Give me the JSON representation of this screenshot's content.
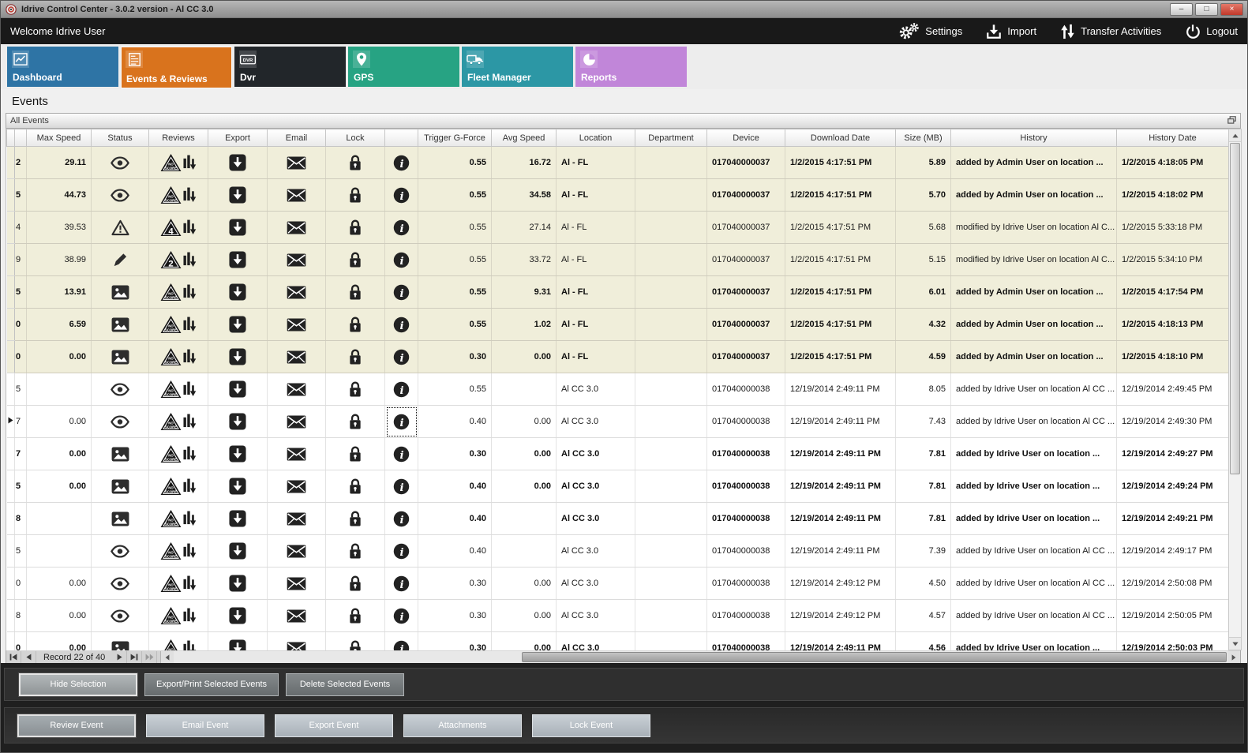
{
  "window": {
    "title": "Idrive Control Center - 3.0.2 version - Al CC 3.0",
    "controls": [
      {
        "name": "minimize",
        "glyph": "–"
      },
      {
        "name": "maximize",
        "glyph": "□"
      },
      {
        "name": "close",
        "glyph": "×"
      }
    ]
  },
  "header": {
    "welcome": "Welcome Idrive User",
    "actions": [
      {
        "label": "Settings",
        "icon": "gears-icon"
      },
      {
        "label": "Import",
        "icon": "import-icon"
      },
      {
        "label": "Transfer Activities",
        "icon": "transfer-icon"
      },
      {
        "label": "Logout",
        "icon": "power-icon"
      }
    ]
  },
  "tabs": [
    {
      "label": "Dashboard",
      "icon": "line-chart-icon",
      "color": "#2e74a5",
      "active": false
    },
    {
      "label": "Events & Reviews",
      "icon": "checklist-icon",
      "color": "#d9731d",
      "active": true
    },
    {
      "label": "Dvr",
      "icon": "dvr-icon",
      "color": "#22262a",
      "active": false
    },
    {
      "label": "GPS",
      "icon": "map-pin-icon",
      "color": "#27a383",
      "active": false
    },
    {
      "label": "Fleet Manager",
      "icon": "truck-icon",
      "color": "#2c97a5",
      "active": false
    },
    {
      "label": "Reports",
      "icon": "pie-chart-icon",
      "color": "#c186d9",
      "active": false
    }
  ],
  "page": {
    "title": "Events",
    "panel_title": "All Events"
  },
  "grid": {
    "columns": [
      "",
      "",
      "Max Speed",
      "Status",
      "Reviews",
      "Export",
      "Email",
      "Lock",
      "",
      "Trigger G-Force",
      "Avg Speed",
      "Location",
      "Department",
      "Device",
      "Download Date",
      "Size (MB)",
      "History",
      "History Date"
    ],
    "rows": [
      {
        "clip": "2",
        "max_speed": "29.11",
        "status": "eye",
        "review": "NO SCORE",
        "trigger": "0.55",
        "avg_speed": "16.72",
        "location": "Al - FL",
        "department": "",
        "device": "017040000037",
        "download_date": "1/2/2015 4:17:51 PM",
        "size": "5.89",
        "history": "added by Admin User on location ...",
        "history_date": "1/2/2015 4:18:05 PM",
        "bold": true,
        "shade": "beige",
        "selected": false
      },
      {
        "clip": "5",
        "max_speed": "44.73",
        "status": "eye",
        "review": "NO SCORE",
        "trigger": "0.55",
        "avg_speed": "34.58",
        "location": "Al - FL",
        "department": "",
        "device": "017040000037",
        "download_date": "1/2/2015 4:17:51 PM",
        "size": "5.70",
        "history": "added by Admin User on location ...",
        "history_date": "1/2/2015 4:18:02 PM",
        "bold": true,
        "shade": "beige",
        "selected": false
      },
      {
        "clip": "4",
        "max_speed": "39.53",
        "status": "warning",
        "review": "4",
        "trigger": "0.55",
        "avg_speed": "27.14",
        "location": "Al - FL",
        "department": "",
        "device": "017040000037",
        "download_date": "1/2/2015 4:17:51 PM",
        "size": "5.68",
        "history": "modified by Idrive User on location Al C...",
        "history_date": "1/2/2015 5:33:18 PM",
        "bold": false,
        "shade": "beige",
        "selected": false
      },
      {
        "clip": "9",
        "max_speed": "38.99",
        "status": "pencil",
        "review": "2",
        "trigger": "0.55",
        "avg_speed": "33.72",
        "location": "Al - FL",
        "department": "",
        "device": "017040000037",
        "download_date": "1/2/2015 4:17:51 PM",
        "size": "5.15",
        "history": "modified by Idrive User on location Al C...",
        "history_date": "1/2/2015 5:34:10 PM",
        "bold": false,
        "shade": "beige",
        "selected": false
      },
      {
        "clip": "5",
        "max_speed": "13.91",
        "status": "image",
        "review": "NO SCORE",
        "trigger": "0.55",
        "avg_speed": "9.31",
        "location": "Al - FL",
        "department": "",
        "device": "017040000037",
        "download_date": "1/2/2015 4:17:51 PM",
        "size": "6.01",
        "history": "added by Admin User on location ...",
        "history_date": "1/2/2015 4:17:54 PM",
        "bold": true,
        "shade": "beige",
        "selected": false
      },
      {
        "clip": "0",
        "max_speed": "6.59",
        "status": "image",
        "review": "NO SCORE",
        "trigger": "0.55",
        "avg_speed": "1.02",
        "location": "Al - FL",
        "department": "",
        "device": "017040000037",
        "download_date": "1/2/2015 4:17:51 PM",
        "size": "4.32",
        "history": "added by Admin User on location ...",
        "history_date": "1/2/2015 4:18:13 PM",
        "bold": true,
        "shade": "beige",
        "selected": false
      },
      {
        "clip": "0",
        "max_speed": "0.00",
        "status": "image",
        "review": "NO SCORE",
        "trigger": "0.30",
        "avg_speed": "0.00",
        "location": "Al - FL",
        "department": "",
        "device": "017040000037",
        "download_date": "1/2/2015 4:17:51 PM",
        "size": "4.59",
        "history": "added by Admin User on location ...",
        "history_date": "1/2/2015 4:18:10 PM",
        "bold": true,
        "shade": "beige",
        "selected": false
      },
      {
        "clip": "5",
        "max_speed": "",
        "status": "eye",
        "review": "NO SCORE",
        "trigger": "0.55",
        "avg_speed": "",
        "location": "Al CC 3.0",
        "department": "",
        "device": "017040000038",
        "download_date": "12/19/2014 2:49:11 PM",
        "size": "8.05",
        "history": "added by Idrive User on location Al CC ...",
        "history_date": "12/19/2014 2:49:45 PM",
        "bold": false,
        "shade": "white",
        "selected": false
      },
      {
        "clip": "7",
        "max_speed": "0.00",
        "status": "eye",
        "review": "NO SCORE",
        "trigger": "0.40",
        "avg_speed": "0.00",
        "location": "Al CC 3.0",
        "department": "",
        "device": "017040000038",
        "download_date": "12/19/2014 2:49:11 PM",
        "size": "7.43",
        "history": "added by Idrive User on location Al CC ...",
        "history_date": "12/19/2014 2:49:30 PM",
        "bold": false,
        "shade": "white",
        "selected": true
      },
      {
        "clip": "7",
        "max_speed": "0.00",
        "status": "image",
        "review": "NO SCORE",
        "trigger": "0.30",
        "avg_speed": "0.00",
        "location": "Al CC 3.0",
        "department": "",
        "device": "017040000038",
        "download_date": "12/19/2014 2:49:11 PM",
        "size": "7.81",
        "history": "added by Idrive User on location ...",
        "history_date": "12/19/2014 2:49:27 PM",
        "bold": true,
        "shade": "white",
        "selected": false
      },
      {
        "clip": "5",
        "max_speed": "0.00",
        "status": "image",
        "review": "NO SCORE",
        "trigger": "0.40",
        "avg_speed": "0.00",
        "location": "Al CC 3.0",
        "department": "",
        "device": "017040000038",
        "download_date": "12/19/2014 2:49:11 PM",
        "size": "7.81",
        "history": "added by Idrive User on location ...",
        "history_date": "12/19/2014 2:49:24 PM",
        "bold": true,
        "shade": "white",
        "selected": false
      },
      {
        "clip": "8",
        "max_speed": "",
        "status": "image",
        "review": "NO SCORE",
        "trigger": "0.40",
        "avg_speed": "",
        "location": "Al CC 3.0",
        "department": "",
        "device": "017040000038",
        "download_date": "12/19/2014 2:49:11 PM",
        "size": "7.81",
        "history": "added by Idrive User on location ...",
        "history_date": "12/19/2014 2:49:21 PM",
        "bold": true,
        "shade": "white",
        "selected": false
      },
      {
        "clip": "5",
        "max_speed": "",
        "status": "eye",
        "review": "NO SCORE",
        "trigger": "0.40",
        "avg_speed": "",
        "location": "Al CC 3.0",
        "department": "",
        "device": "017040000038",
        "download_date": "12/19/2014 2:49:11 PM",
        "size": "7.39",
        "history": "added by Idrive User on location Al CC ...",
        "history_date": "12/19/2014 2:49:17 PM",
        "bold": false,
        "shade": "white",
        "selected": false
      },
      {
        "clip": "0",
        "max_speed": "0.00",
        "status": "eye",
        "review": "NO SCORE",
        "trigger": "0.30",
        "avg_speed": "0.00",
        "location": "Al CC 3.0",
        "department": "",
        "device": "017040000038",
        "download_date": "12/19/2014 2:49:12 PM",
        "size": "4.50",
        "history": "added by Idrive User on location Al CC ...",
        "history_date": "12/19/2014 2:50:08 PM",
        "bold": false,
        "shade": "white",
        "selected": false
      },
      {
        "clip": "8",
        "max_speed": "0.00",
        "status": "eye",
        "review": "NO SCORE",
        "trigger": "0.30",
        "avg_speed": "0.00",
        "location": "Al CC 3.0",
        "department": "",
        "device": "017040000038",
        "download_date": "12/19/2014 2:49:12 PM",
        "size": "4.57",
        "history": "added by Idrive User on location Al CC ...",
        "history_date": "12/19/2014 2:50:05 PM",
        "bold": false,
        "shade": "white",
        "selected": false
      },
      {
        "clip": "0",
        "max_speed": "0.00",
        "status": "image",
        "review": "NO SCORE",
        "trigger": "0.30",
        "avg_speed": "0.00",
        "location": "Al CC 3.0",
        "department": "",
        "device": "017040000038",
        "download_date": "12/19/2014 2:49:11 PM",
        "size": "4.56",
        "history": "added by Idrive User on location ...",
        "history_date": "12/19/2014 2:50:03 PM",
        "bold": true,
        "shade": "white",
        "selected": false
      }
    ]
  },
  "pager": {
    "record_text": "Record 22 of 40"
  },
  "footer": {
    "selection_buttons": [
      "Hide Selection",
      "Export/Print Selected Events",
      "Delete Selected  Events"
    ],
    "event_buttons": [
      "Review Event",
      "Email Event",
      "Export Event",
      "Attachments",
      "Lock Event"
    ]
  }
}
